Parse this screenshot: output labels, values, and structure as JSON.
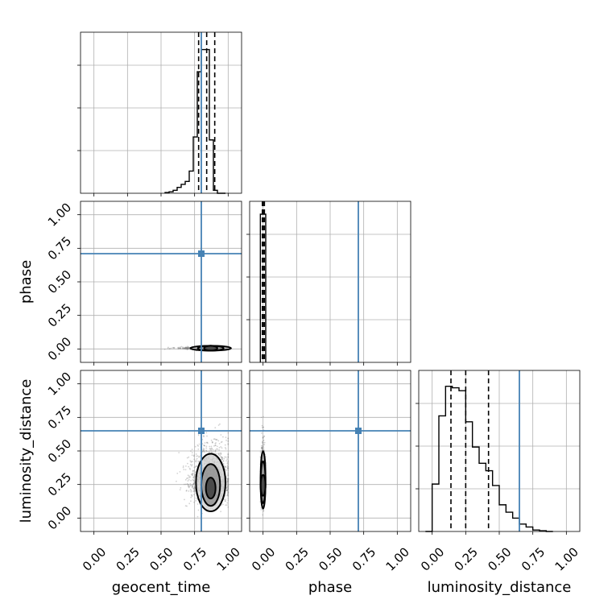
{
  "chart_data": {
    "type": "corner",
    "parameters": [
      "geocent_time",
      "phase",
      "luminosity_distance"
    ],
    "axis_range": [
      -0.1,
      1.1
    ],
    "tick_labels": [
      "0.00",
      "0.25",
      "0.50",
      "0.75",
      "1.00"
    ],
    "truths": {
      "geocent_time": 0.8,
      "phase": 0.71,
      "luminosity_distance": 0.65
    },
    "colors": {
      "truth": "#4682b4",
      "hist": "#000000",
      "grid": "#b0b0b0",
      "scatter": "#808080"
    },
    "grid": true,
    "histograms": {
      "geocent_time": {
        "bin_edges": [
          0.53,
          0.56,
          0.59,
          0.62,
          0.65,
          0.68,
          0.71,
          0.74,
          0.77,
          0.8,
          0.83,
          0.86,
          0.89,
          0.92,
          0.95,
          0.98
        ],
        "counts": [
          0.005,
          0.01,
          0.02,
          0.04,
          0.06,
          0.08,
          0.15,
          0.38,
          0.82,
          0.97,
          0.97,
          0.36,
          0.02,
          0.0,
          0.0
        ],
        "quantiles": [
          0.78,
          0.84,
          0.9
        ]
      },
      "phase": {
        "bin_edges": [
          -0.02,
          0.0,
          0.02
        ],
        "counts": [
          1.0,
          1.0
        ],
        "quantiles": [
          -0.005,
          0.0,
          0.01
        ]
      },
      "luminosity_distance": {
        "bin_edges": [
          -0.05,
          0.0,
          0.05,
          0.1,
          0.15,
          0.2,
          0.25,
          0.3,
          0.35,
          0.4,
          0.45,
          0.5,
          0.55,
          0.6,
          0.65,
          0.7,
          0.75,
          0.8,
          0.85,
          0.9
        ],
        "counts": [
          0.0,
          0.32,
          0.78,
          0.98,
          0.97,
          0.95,
          0.74,
          0.57,
          0.46,
          0.41,
          0.31,
          0.18,
          0.13,
          0.09,
          0.05,
          0.03,
          0.01,
          0.005,
          0.0
        ],
        "quantiles": [
          0.14,
          0.25,
          0.42
        ]
      }
    },
    "pair_plots": {
      "phase_vs_geocent_time": {
        "center": [
          0.87,
          0.0
        ],
        "x_spread": [
          0.45,
          1.0
        ],
        "y_spread": [
          -0.02,
          0.02
        ]
      },
      "luminosity_distance_vs_geocent_time": {
        "center": [
          0.87,
          0.2
        ],
        "x_spread": [
          0.6,
          1.0
        ],
        "y_spread": [
          0.02,
          0.8
        ]
      },
      "luminosity_distance_vs_phase": {
        "center": [
          0.0,
          0.22
        ],
        "x_spread": [
          -0.02,
          0.02
        ],
        "y_spread": [
          0.02,
          0.8
        ]
      }
    }
  }
}
